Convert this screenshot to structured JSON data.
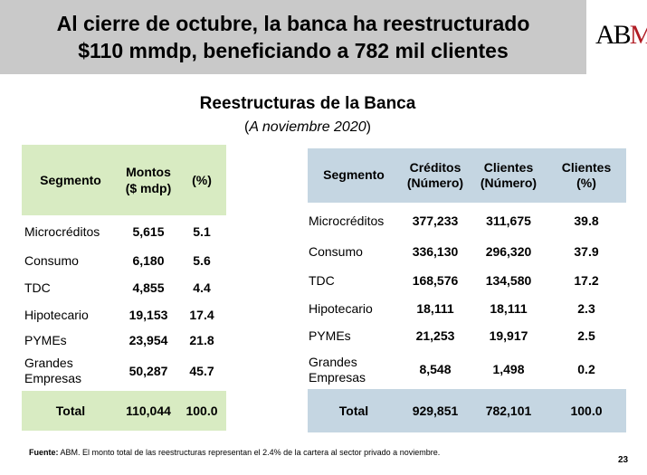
{
  "header": {
    "line1": "Al cierre de octubre, la banca ha reestructurado",
    "line2": "$110 mmdp, beneficiando a 782 mil clientes"
  },
  "logo": {
    "text_a": "A",
    "text_b": "B",
    "text_m": "M"
  },
  "title": "Reestructuras de la Banca",
  "subtitle": {
    "open": "(",
    "italic": "A noviembre 2020",
    "close": ")"
  },
  "left_table": {
    "headers": {
      "segment": "Segmento",
      "amount_1": "Montos",
      "amount_2": "($ mdp)",
      "pct": "(%)"
    },
    "rows": [
      {
        "label": "Microcréditos",
        "amount": "5,615",
        "pct": "5.1"
      },
      {
        "label": "Consumo",
        "amount": "6,180",
        "pct": "5.6"
      },
      {
        "label": "TDC",
        "amount": "4,855",
        "pct": "4.4"
      },
      {
        "label": "Hipotecario",
        "amount": "19,153",
        "pct": "17.4"
      },
      {
        "label": "PYMEs",
        "amount": "23,954",
        "pct": "21.8"
      },
      {
        "label_1": "Grandes",
        "label_2": "Empresas",
        "amount": "50,287",
        "pct": "45.7"
      }
    ],
    "total": {
      "label": "Total",
      "amount": "110,044",
      "pct": "100.0"
    }
  },
  "right_table": {
    "headers": {
      "segment": "Segmento",
      "credits_1": "Créditos",
      "credits_2": "(Número)",
      "clients_1": "Clientes",
      "clients_2": "(Número)",
      "clients_pct_1": "Clientes",
      "clients_pct_2": "(%)"
    },
    "rows": [
      {
        "label": "Microcréditos",
        "credits": "377,233",
        "clients": "311,675",
        "pct": "39.8"
      },
      {
        "label": "Consumo",
        "credits": "336,130",
        "clients": "296,320",
        "pct": "37.9"
      },
      {
        "label": "TDC",
        "credits": "168,576",
        "clients": "134,580",
        "pct": "17.2"
      },
      {
        "label": "Hipotecario",
        "credits": "18,111",
        "clients": "18,111",
        "pct": "2.3"
      },
      {
        "label": "PYMEs",
        "credits": "21,253",
        "clients": "19,917",
        "pct": "2.5"
      },
      {
        "label_1": "Grandes",
        "label_2": "Empresas",
        "credits": "8,548",
        "clients": "1,498",
        "pct": "0.2"
      }
    ],
    "total": {
      "label": "Total",
      "credits": "929,851",
      "clients": "782,101",
      "pct": "100.0"
    }
  },
  "footer": {
    "label": "Fuente:",
    "text": " ABM. El monto total de las reestructuras representan el 2.4% de la cartera al sector privado a noviembre."
  },
  "page_number": "23",
  "colors": {
    "header_bg": "#c9c9c9",
    "green": "#d8ebc2",
    "blue": "#c5d6e2",
    "logo_m": "#b01c24"
  }
}
